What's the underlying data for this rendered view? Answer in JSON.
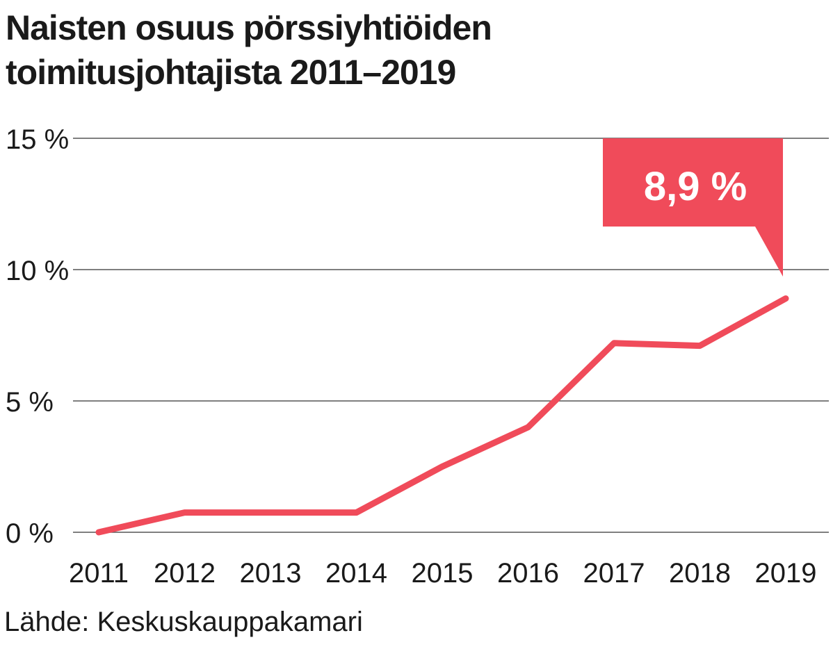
{
  "title_line1": "Naisten osuus pörssiyhtiöiden",
  "title_line2": "toimitusjohtajista 2011–2019",
  "source": "Lähde: Keskuskauppakamari",
  "callout": {
    "text": "8,9 %",
    "color": "#f04b5a"
  },
  "line_color": "#f04b5a",
  "grid_color": "#555555",
  "chart_data": {
    "type": "line",
    "x": [
      "2011",
      "2012",
      "2013",
      "2014",
      "2015",
      "2016",
      "2017",
      "2018",
      "2019"
    ],
    "series": [
      {
        "values": [
          0.0,
          0.75,
          0.75,
          0.75,
          2.5,
          4.0,
          7.2,
          7.1,
          8.9
        ]
      }
    ],
    "yticks": [
      0,
      5,
      10,
      15
    ],
    "ytick_labels": [
      "0 %",
      "5 %",
      "10 %",
      "15 %"
    ],
    "ylim": [
      0,
      15
    ],
    "grid": true,
    "annotation": {
      "x": "2019",
      "label": "8,9 %"
    }
  }
}
